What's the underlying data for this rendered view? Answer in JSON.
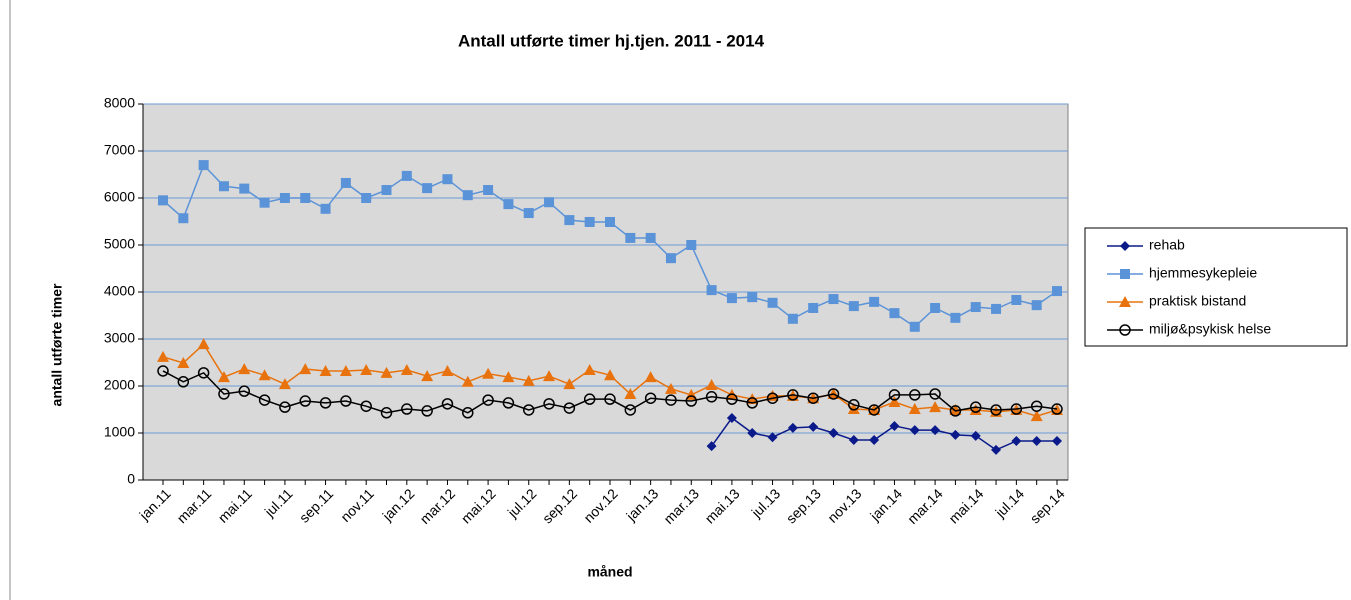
{
  "chart_data": {
    "type": "line",
    "title": "Antall utførte timer hj.tjen. 2011 - 2014",
    "xlabel": "måned",
    "ylabel": "antall utførte timer",
    "categories": [
      "jan.11",
      null,
      "mar.11",
      null,
      "mai.11",
      null,
      "jul.11",
      null,
      "sep.11",
      null,
      "nov.11",
      null,
      "jan.12",
      null,
      "mar.12",
      null,
      "mai.12",
      null,
      "jul.12",
      null,
      "sep.12",
      null,
      "nov.12",
      null,
      "jan.13",
      null,
      "mar.13",
      null,
      "mai.13",
      null,
      "jul.13",
      null,
      "sep.13",
      null,
      "nov.13",
      null,
      "jan.14",
      null,
      "mar.14",
      null,
      "mai.14",
      null,
      "jul.14",
      null,
      "sep.14"
    ],
    "ylim": [
      0,
      8000
    ],
    "yticks": [
      0,
      1000,
      2000,
      3000,
      4000,
      5000,
      6000,
      7000,
      8000
    ],
    "grid": true,
    "legend": "right",
    "series": [
      {
        "name": "rehab",
        "color": "#0a1a8a",
        "marker": "diamond",
        "values": [
          null,
          null,
          null,
          null,
          null,
          null,
          null,
          null,
          null,
          null,
          null,
          null,
          null,
          null,
          null,
          null,
          null,
          null,
          null,
          null,
          null,
          null,
          null,
          null,
          null,
          null,
          null,
          720,
          1320,
          1000,
          910,
          1110,
          1130,
          1000,
          850,
          850,
          1150,
          1060,
          1060,
          960,
          940,
          640,
          830,
          830,
          830
        ]
      },
      {
        "name": "hjemmesykepleie",
        "color": "#5b93d8",
        "marker": "square",
        "values": [
          5950,
          5570,
          6700,
          6250,
          6200,
          5900,
          6000,
          6000,
          5770,
          6320,
          6000,
          6170,
          6470,
          6210,
          6400,
          6060,
          6170,
          5870,
          5680,
          5910,
          5530,
          5490,
          5490,
          5150,
          5150,
          4720,
          5000,
          4040,
          3870,
          3890,
          3770,
          3430,
          3660,
          3850,
          3700,
          3790,
          3550,
          3260,
          3660,
          3450,
          3680,
          3640,
          3830,
          3720,
          4020
        ]
      },
      {
        "name": "praktisk bistand",
        "color": "#e8730e",
        "marker": "triangle",
        "values": [
          2620,
          2490,
          2890,
          2190,
          2360,
          2230,
          2040,
          2360,
          2320,
          2320,
          2340,
          2280,
          2340,
          2210,
          2320,
          2090,
          2260,
          2190,
          2110,
          2210,
          2040,
          2340,
          2230,
          1830,
          2190,
          1940,
          1810,
          2020,
          1810,
          1720,
          1790,
          1790,
          1740,
          1830,
          1510,
          1490,
          1660,
          1510,
          1550,
          1490,
          1490,
          1450,
          1490,
          1360,
          1490
        ]
      },
      {
        "name": "miljø&psykisk helse",
        "color": "#000000",
        "marker": "circle",
        "values": [
          2320,
          2090,
          2280,
          1830,
          1890,
          1700,
          1550,
          1680,
          1640,
          1680,
          1570,
          1430,
          1510,
          1470,
          1620,
          1430,
          1700,
          1640,
          1490,
          1620,
          1530,
          1720,
          1720,
          1490,
          1740,
          1700,
          1680,
          1770,
          1720,
          1640,
          1740,
          1810,
          1740,
          1830,
          1600,
          1490,
          1810,
          1810,
          1830,
          1470,
          1550,
          1490,
          1510,
          1570,
          1510
        ]
      }
    ]
  }
}
